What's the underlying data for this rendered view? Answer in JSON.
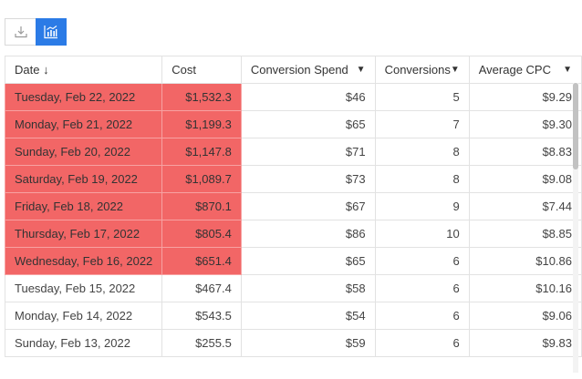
{
  "toolbar": {
    "download_icon": "download-icon",
    "chart_icon": "bar-chart-icon",
    "accent": "#2b7be6"
  },
  "table": {
    "headers": {
      "date": "Date ↓",
      "cost": "Cost",
      "conversion_spend": "Conversion Spend",
      "conversions": "Conversions",
      "average_cpc": "Average CPC"
    },
    "highlight_color": "#f26666",
    "rows": [
      {
        "date": "Tuesday, Feb 22, 2022",
        "cost": "$1,532.3",
        "spend": "$46",
        "conversions": "5",
        "cpc": "$9.29",
        "highlighted": true
      },
      {
        "date": "Monday, Feb 21, 2022",
        "cost": "$1,199.3",
        "spend": "$65",
        "conversions": "7",
        "cpc": "$9.30",
        "highlighted": true
      },
      {
        "date": "Sunday, Feb 20, 2022",
        "cost": "$1,147.8",
        "spend": "$71",
        "conversions": "8",
        "cpc": "$8.83",
        "highlighted": true
      },
      {
        "date": "Saturday, Feb 19, 2022",
        "cost": "$1,089.7",
        "spend": "$73",
        "conversions": "8",
        "cpc": "$9.08",
        "highlighted": true
      },
      {
        "date": "Friday, Feb 18, 2022",
        "cost": "$870.1",
        "spend": "$67",
        "conversions": "9",
        "cpc": "$7.44",
        "highlighted": true
      },
      {
        "date": "Thursday, Feb 17, 2022",
        "cost": "$805.4",
        "spend": "$86",
        "conversions": "10",
        "cpc": "$8.85",
        "highlighted": true
      },
      {
        "date": "Wednesday, Feb 16, 2022",
        "cost": "$651.4",
        "spend": "$65",
        "conversions": "6",
        "cpc": "$10.86",
        "highlighted": true
      },
      {
        "date": "Tuesday, Feb 15, 2022",
        "cost": "$467.4",
        "spend": "$58",
        "conversions": "6",
        "cpc": "$10.16",
        "highlighted": false
      },
      {
        "date": "Monday, Feb 14, 2022",
        "cost": "$543.5",
        "spend": "$54",
        "conversions": "6",
        "cpc": "$9.06",
        "highlighted": false
      },
      {
        "date": "Sunday, Feb 13, 2022",
        "cost": "$255.5",
        "spend": "$59",
        "conversions": "6",
        "cpc": "$9.83",
        "highlighted": false
      }
    ]
  }
}
